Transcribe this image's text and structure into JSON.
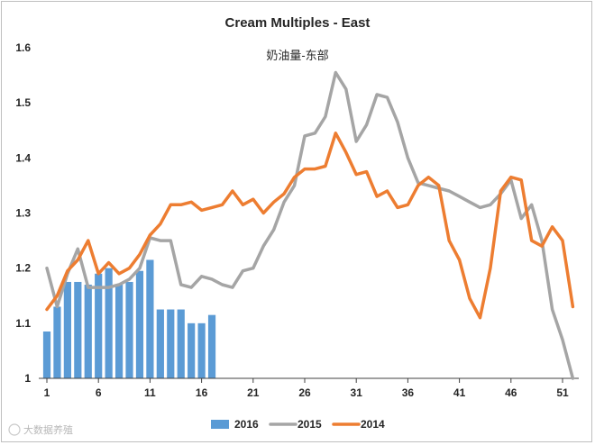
{
  "chart_data": {
    "type": "bar+line",
    "title": "Cream Multiples - East",
    "subtitle": "奶油量-东部",
    "xlabel": "",
    "ylabel": "",
    "ylim": [
      1,
      1.6
    ],
    "y_ticks": [
      "1",
      "1.1",
      "1.2",
      "1.3",
      "1.4",
      "1.5",
      "1.6"
    ],
    "x_ticks": [
      "1",
      "6",
      "11",
      "16",
      "21",
      "26",
      "31",
      "36",
      "41",
      "46",
      "51"
    ],
    "grid": false,
    "legend_position": "bottom",
    "series": [
      {
        "name": "2016",
        "kind": "bar",
        "color": "#5b9bd5",
        "x": [
          1,
          2,
          3,
          4,
          5,
          6,
          7,
          8,
          9,
          10,
          11,
          12,
          13,
          14,
          15,
          16,
          17
        ],
        "values": [
          1.085,
          1.13,
          1.175,
          1.175,
          1.17,
          1.19,
          1.2,
          1.17,
          1.175,
          1.195,
          1.215,
          1.125,
          1.125,
          1.125,
          1.1,
          1.1,
          1.115
        ]
      },
      {
        "name": "2015",
        "kind": "line",
        "color": "#a5a5a5",
        "x": [
          1,
          2,
          3,
          4,
          5,
          6,
          7,
          8,
          9,
          10,
          11,
          12,
          13,
          14,
          15,
          16,
          17,
          18,
          19,
          20,
          21,
          22,
          23,
          24,
          25,
          26,
          27,
          28,
          29,
          30,
          31,
          32,
          33,
          34,
          35,
          36,
          37,
          38,
          39,
          40,
          41,
          42,
          43,
          44,
          45,
          46,
          47,
          48,
          49,
          50,
          51,
          52
        ],
        "values": [
          1.2,
          1.13,
          1.19,
          1.235,
          1.165,
          1.165,
          1.165,
          1.17,
          1.18,
          1.2,
          1.255,
          1.25,
          1.25,
          1.17,
          1.165,
          1.185,
          1.18,
          1.17,
          1.165,
          1.195,
          1.2,
          1.24,
          1.27,
          1.32,
          1.35,
          1.44,
          1.445,
          1.475,
          1.555,
          1.525,
          1.43,
          1.46,
          1.515,
          1.51,
          1.465,
          1.4,
          1.355,
          1.35,
          1.345,
          1.34,
          1.33,
          1.32,
          1.31,
          1.315,
          1.335,
          1.36,
          1.29,
          1.315,
          1.25,
          1.125,
          1.07,
          1.0
        ]
      },
      {
        "name": "2014",
        "kind": "line",
        "color": "#ed7d31",
        "x": [
          1,
          2,
          3,
          4,
          5,
          6,
          7,
          8,
          9,
          10,
          11,
          12,
          13,
          14,
          15,
          16,
          17,
          18,
          19,
          20,
          21,
          22,
          23,
          24,
          25,
          26,
          27,
          28,
          29,
          30,
          31,
          32,
          33,
          34,
          35,
          36,
          37,
          38,
          39,
          40,
          41,
          42,
          43,
          44,
          45,
          46,
          47,
          48,
          49,
          50,
          51,
          52
        ],
        "values": [
          1.125,
          1.15,
          1.195,
          1.215,
          1.25,
          1.19,
          1.21,
          1.19,
          1.2,
          1.225,
          1.26,
          1.28,
          1.315,
          1.315,
          1.32,
          1.305,
          1.31,
          1.315,
          1.34,
          1.315,
          1.325,
          1.3,
          1.32,
          1.335,
          1.365,
          1.38,
          1.38,
          1.385,
          1.445,
          1.41,
          1.37,
          1.375,
          1.33,
          1.34,
          1.31,
          1.315,
          1.35,
          1.365,
          1.35,
          1.25,
          1.215,
          1.145,
          1.11,
          1.2,
          1.34,
          1.365,
          1.36,
          1.25,
          1.24,
          1.275,
          1.25,
          1.13
        ]
      }
    ],
    "watermark": "大数据养殖"
  }
}
